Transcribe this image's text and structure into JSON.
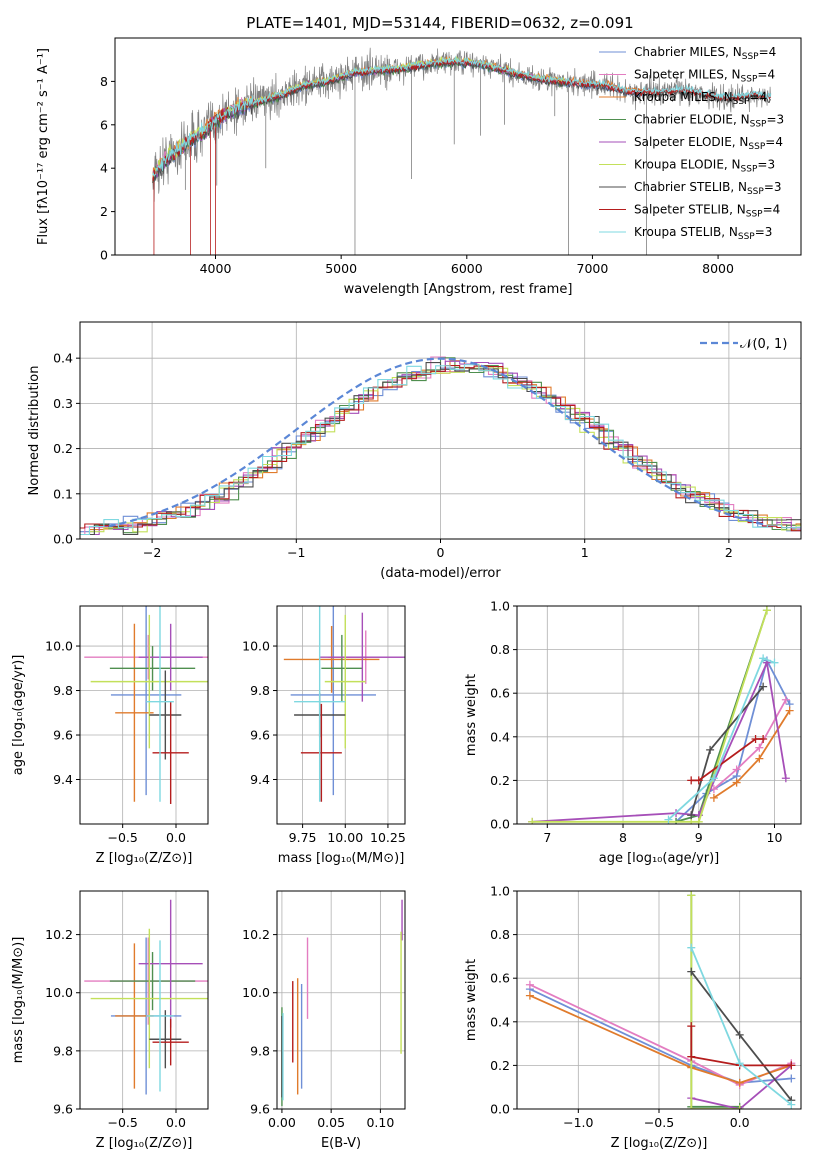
{
  "title": "PLATE=1401, MJD=53144, FIBERID=0632, z=0.091",
  "colors": {
    "chabrier_miles": "#6f8fd6",
    "salpeter_miles": "#e37dc1",
    "kroupa_miles": "#e07b2c",
    "chabrier_elodie": "#4f8f4f",
    "salpeter_elodie": "#a64fb8",
    "kroupa_elodie": "#c3e05a",
    "chabrier_stelib": "#4d4d4d",
    "salpeter_stelib": "#b51d1d",
    "kroupa_stelib": "#7fd8e0",
    "data": "#808080",
    "normal": "#5b87d6",
    "grid": "#b0b0b0"
  },
  "chart_data": [
    {
      "id": "spectrum",
      "type": "line",
      "title": "PLATE=1401, MJD=53144, FIBERID=0632, z=0.091",
      "xlabel": "wavelength [Angstrom, rest frame]",
      "ylabel": "Flux [fλ10⁻¹⁷ erg cm⁻² s⁻¹ A⁻¹]",
      "xlim": [
        3200,
        8660
      ],
      "ylim": [
        0,
        10
      ],
      "xticks": [
        4000,
        5000,
        6000,
        7000,
        8000
      ],
      "yticks": [
        0,
        2,
        4,
        6,
        8
      ],
      "grid": false,
      "legend_position": "right",
      "legend": [
        {
          "label": "Chabrier MILES, N",
          "sub": "SSP",
          "suffix": "=4",
          "color_key": "chabrier_miles"
        },
        {
          "label": "Salpeter MILES, N",
          "sub": "SSP",
          "suffix": "=4",
          "color_key": "salpeter_miles"
        },
        {
          "label": "Kroupa MILES, N",
          "sub": "SSP",
          "suffix": "=4",
          "color_key": "kroupa_miles"
        },
        {
          "label": "Chabrier ELODIE, N",
          "sub": "SSP",
          "suffix": "=3",
          "color_key": "chabrier_elodie"
        },
        {
          "label": "Salpeter ELODIE, N",
          "sub": "SSP",
          "suffix": "=4",
          "color_key": "salpeter_elodie"
        },
        {
          "label": "Kroupa ELODIE, N",
          "sub": "SSP",
          "suffix": "=3",
          "color_key": "kroupa_elodie"
        },
        {
          "label": "Chabrier STELIB, N",
          "sub": "SSP",
          "suffix": "=3",
          "color_key": "chabrier_stelib"
        },
        {
          "label": "Salpeter STELIB, N",
          "sub": "SSP",
          "suffix": "=4",
          "color_key": "salpeter_stelib"
        },
        {
          "label": "Kroupa STELIB, N",
          "sub": "SSP",
          "suffix": "=3",
          "color_key": "kroupa_stelib"
        }
      ],
      "continuum": [
        [
          3500,
          3.6
        ],
        [
          3600,
          4.4
        ],
        [
          3700,
          4.8
        ],
        [
          3800,
          5.3
        ],
        [
          3900,
          5.6
        ],
        [
          4000,
          6.2
        ],
        [
          4100,
          6.6
        ],
        [
          4300,
          7.0
        ],
        [
          4500,
          7.3
        ],
        [
          4700,
          7.8
        ],
        [
          4900,
          8.0
        ],
        [
          5100,
          8.4
        ],
        [
          5300,
          8.5
        ],
        [
          5500,
          8.6
        ],
        [
          5700,
          8.8
        ],
        [
          5900,
          8.9
        ],
        [
          6100,
          8.8
        ],
        [
          6300,
          8.5
        ],
        [
          6500,
          8.2
        ],
        [
          6700,
          8.0
        ],
        [
          6900,
          7.9
        ],
        [
          7100,
          7.8
        ],
        [
          7300,
          7.5
        ],
        [
          7500,
          7.5
        ],
        [
          7700,
          7.6
        ],
        [
          7900,
          7.4
        ],
        [
          8100,
          7.2
        ],
        [
          8300,
          7.4
        ],
        [
          8420,
          7.2
        ]
      ]
    },
    {
      "id": "residuals",
      "type": "line",
      "xlabel": "(data-model)/error",
      "ylabel": "Normed distribution",
      "xlim": [
        -2.5,
        2.5
      ],
      "ylim": [
        0,
        0.48
      ],
      "xticks": [
        -2,
        -1,
        0,
        1,
        2
      ],
      "xtick_labels": [
        "−2",
        "−1",
        "0",
        "1",
        "2"
      ],
      "yticks": [
        0,
        0.1,
        0.2,
        0.3,
        0.4
      ],
      "ytick_labels": [
        "0.0",
        "0.1",
        "0.2",
        "0.3",
        "0.4"
      ],
      "grid": true,
      "legend_position": "upper right",
      "legend_label": "𝒩(0, 1)",
      "bin_width": 0.1
    },
    {
      "id": "age-vs-metallicity",
      "type": "scatter",
      "xlabel": "Z [log₁₀(Z/Z⊙)]",
      "ylabel": "age  [log₁₀(age/yr)]",
      "xlim": [
        -0.9,
        0.3
      ],
      "ylim": [
        9.2,
        10.18
      ],
      "xticks": [
        -0.5,
        0.0
      ],
      "xtick_labels": [
        "−0.5",
        "0.0"
      ],
      "yticks": [
        9.4,
        9.6,
        9.8,
        10.0
      ],
      "ytick_labels": [
        "9.4",
        "9.6",
        "9.8",
        "10.0"
      ],
      "grid": true,
      "points": [
        {
          "x": -0.28,
          "y": 9.78,
          "xerr": 0.33,
          "yerr": 0.45,
          "color_key": "chabrier_miles"
        },
        {
          "x": -0.26,
          "y": 9.95,
          "xerr": 0.6,
          "yerr": 0.1,
          "color_key": "salpeter_miles"
        },
        {
          "x": -0.39,
          "y": 9.7,
          "xerr": 0.18,
          "yerr": 0.4,
          "color_key": "kroupa_miles"
        },
        {
          "x": -0.22,
          "y": 9.9,
          "xerr": 0.4,
          "yerr": 0.1,
          "color_key": "chabrier_elodie"
        },
        {
          "x": -0.05,
          "y": 9.95,
          "xerr": 0.3,
          "yerr": 0.15,
          "color_key": "salpeter_elodie"
        },
        {
          "x": -0.25,
          "y": 9.84,
          "xerr": 0.55,
          "yerr": 0.3,
          "color_key": "kroupa_elodie"
        },
        {
          "x": -0.1,
          "y": 9.69,
          "xerr": 0.15,
          "yerr": 0.2,
          "color_key": "chabrier_stelib"
        },
        {
          "x": -0.05,
          "y": 9.52,
          "xerr": 0.17,
          "yerr": 0.23,
          "color_key": "salpeter_stelib"
        },
        {
          "x": -0.15,
          "y": 9.75,
          "xerr": 0.13,
          "yerr": 0.45,
          "color_key": "kroupa_stelib"
        }
      ]
    },
    {
      "id": "age-vs-mass",
      "type": "scatter",
      "xlabel": "mass [log₁₀(M/M⊙)]",
      "ylabel": "",
      "xlim": [
        9.6,
        10.35
      ],
      "ylim": [
        9.2,
        10.18
      ],
      "xticks": [
        9.75,
        10.0,
        10.25
      ],
      "xtick_labels": [
        "9.75",
        "10.00",
        "10.25"
      ],
      "yticks": [
        9.4,
        9.6,
        9.8,
        10.0
      ],
      "ytick_labels": [
        "9.4",
        "9.6",
        "9.8",
        "10.0"
      ],
      "grid": true,
      "points": [
        {
          "x": 9.93,
          "y": 9.78,
          "xerr": 0.25,
          "yerr": 0.45,
          "color_key": "chabrier_miles"
        },
        {
          "x": 10.12,
          "y": 9.95,
          "xerr": 0.22,
          "yerr": 0.12,
          "color_key": "salpeter_miles"
        },
        {
          "x": 9.92,
          "y": 9.94,
          "xerr": 0.28,
          "yerr": 0.15,
          "color_key": "kroupa_miles"
        },
        {
          "x": 9.98,
          "y": 9.9,
          "xerr": 0.12,
          "yerr": 0.15,
          "color_key": "chabrier_elodie"
        },
        {
          "x": 10.1,
          "y": 9.95,
          "xerr": 0.25,
          "yerr": 0.2,
          "color_key": "salpeter_elodie"
        },
        {
          "x": 10.0,
          "y": 9.84,
          "xerr": 0.12,
          "yerr": 0.3,
          "color_key": "kroupa_elodie"
        },
        {
          "x": 9.85,
          "y": 9.69,
          "xerr": 0.15,
          "yerr": 0.1,
          "color_key": "chabrier_stelib"
        },
        {
          "x": 9.86,
          "y": 9.52,
          "xerr": 0.12,
          "yerr": 0.22,
          "color_key": "salpeter_stelib"
        },
        {
          "x": 9.85,
          "y": 9.75,
          "xerr": 0.15,
          "yerr": 0.45,
          "color_key": "kroupa_stelib"
        }
      ]
    },
    {
      "id": "weight-vs-age",
      "type": "line",
      "xlabel": "age  [log₁₀(age/yr)]",
      "ylabel": "mass weight",
      "xlim": [
        6.6,
        10.35
      ],
      "ylim": [
        0,
        1.0
      ],
      "xticks": [
        7,
        8,
        9,
        10
      ],
      "xtick_labels": [
        "7",
        "8",
        "9",
        "10"
      ],
      "yticks": [
        0,
        0.2,
        0.4,
        0.6,
        0.8,
        1.0
      ],
      "ytick_labels": [
        "0.0",
        "0.2",
        "0.4",
        "0.6",
        "0.8",
        "1.0"
      ],
      "grid": true,
      "series": [
        {
          "color_key": "chabrier_miles",
          "x": [
            8.7,
            9.1,
            9.5,
            9.9,
            10.2
          ],
          "y": [
            0.01,
            0.14,
            0.22,
            0.75,
            0.55
          ]
        },
        {
          "color_key": "salpeter_miles",
          "x": [
            9.2,
            9.5,
            9.8,
            10.15
          ],
          "y": [
            0.16,
            0.25,
            0.35,
            0.57
          ]
        },
        {
          "color_key": "kroupa_miles",
          "x": [
            9.2,
            9.5,
            9.8,
            10.2
          ],
          "y": [
            0.12,
            0.19,
            0.3,
            0.52
          ]
        },
        {
          "color_key": "chabrier_elodie",
          "x": [
            8.7,
            9.0,
            9.9
          ],
          "y": [
            0.01,
            0.04,
            0.98
          ]
        },
        {
          "color_key": "salpeter_elodie",
          "x": [
            6.8,
            8.7,
            9.0,
            9.9,
            10.15
          ],
          "y": [
            0.01,
            0.05,
            0.04,
            0.74,
            0.21
          ]
        },
        {
          "color_key": "kroupa_elodie",
          "x": [
            6.8,
            8.9,
            9.0,
            9.9
          ],
          "y": [
            0.01,
            0.01,
            0.01,
            0.98
          ]
        },
        {
          "color_key": "chabrier_stelib",
          "x": [
            8.9,
            9.15,
            9.85
          ],
          "y": [
            0.04,
            0.34,
            0.63
          ]
        },
        {
          "color_key": "salpeter_stelib",
          "x": [
            8.9,
            9.0,
            9.75,
            9.85
          ],
          "y": [
            0.2,
            0.2,
            0.39,
            0.39
          ]
        },
        {
          "color_key": "kroupa_stelib",
          "x": [
            8.6,
            9.2,
            9.85,
            10.0
          ],
          "y": [
            0.02,
            0.21,
            0.76,
            0.74
          ]
        }
      ]
    },
    {
      "id": "mass-vs-metallicity",
      "type": "scatter",
      "xlabel": "Z [log₁₀(Z/Z⊙)]",
      "ylabel": "mass [log₁₀(M/M⊙)]",
      "xlim": [
        -0.9,
        0.3
      ],
      "ylim": [
        9.6,
        10.35
      ],
      "xticks": [
        -0.5,
        0.0
      ],
      "xtick_labels": [
        "−0.5",
        "0.0"
      ],
      "yticks": [
        9.6,
        9.8,
        10.0,
        10.2
      ],
      "ytick_labels": [
        "9.6",
        "9.8",
        "10.0",
        "10.2"
      ],
      "grid": true,
      "points": [
        {
          "x": -0.28,
          "y": 9.92,
          "xerr": 0.33,
          "yerr": 0.27,
          "color_key": "chabrier_miles"
        },
        {
          "x": -0.26,
          "y": 10.04,
          "xerr": 0.6,
          "yerr": 0.15,
          "color_key": "salpeter_miles"
        },
        {
          "x": -0.39,
          "y": 9.92,
          "xerr": 0.18,
          "yerr": 0.25,
          "color_key": "kroupa_miles"
        },
        {
          "x": -0.22,
          "y": 10.04,
          "xerr": 0.4,
          "yerr": 0.1,
          "color_key": "chabrier_elodie"
        },
        {
          "x": -0.05,
          "y": 10.1,
          "xerr": 0.3,
          "yerr": 0.22,
          "color_key": "salpeter_elodie"
        },
        {
          "x": -0.25,
          "y": 9.98,
          "xerr": 0.55,
          "yerr": 0.24,
          "color_key": "kroupa_elodie"
        },
        {
          "x": -0.1,
          "y": 9.84,
          "xerr": 0.15,
          "yerr": 0.1,
          "color_key": "chabrier_stelib"
        },
        {
          "x": -0.05,
          "y": 9.83,
          "xerr": 0.17,
          "yerr": 0.08,
          "color_key": "salpeter_stelib"
        },
        {
          "x": -0.15,
          "y": 9.92,
          "xerr": 0.13,
          "yerr": 0.26,
          "color_key": "kroupa_stelib"
        }
      ]
    },
    {
      "id": "mass-vs-extinction",
      "type": "scatter",
      "xlabel": "E(B-V)",
      "ylabel": "",
      "xlim": [
        -0.005,
        0.125
      ],
      "ylim": [
        9.6,
        10.35
      ],
      "xticks": [
        0.0,
        0.05,
        0.1
      ],
      "xtick_labels": [
        "0.00",
        "0.05",
        "0.10"
      ],
      "yticks": [
        9.6,
        9.8,
        10.0,
        10.2
      ],
      "ytick_labels": [
        "9.6",
        "9.8",
        "10.0",
        "10.2"
      ],
      "grid": true,
      "points": [
        {
          "x": 0.02,
          "y": 9.85,
          "xerr": 0,
          "yerr": 0.18,
          "color_key": "chabrier_miles"
        },
        {
          "x": 0.026,
          "y": 10.05,
          "xerr": 0,
          "yerr": 0.14,
          "color_key": "salpeter_miles"
        },
        {
          "x": 0.016,
          "y": 9.85,
          "xerr": 0,
          "yerr": 0.2,
          "color_key": "kroupa_miles"
        },
        {
          "x": 0.0,
          "y": 9.78,
          "xerr": 0,
          "yerr": 0.17,
          "color_key": "chabrier_elodie"
        },
        {
          "x": 0.122,
          "y": 10.25,
          "xerr": 0,
          "yerr": 0.07,
          "color_key": "salpeter_elodie"
        },
        {
          "x": 0.121,
          "y": 10.0,
          "xerr": 0,
          "yerr": 0.21,
          "color_key": "kroupa_elodie"
        },
        {
          "x": 0.0,
          "y": 9.78,
          "xerr": 0,
          "yerr": 0.14,
          "color_key": "chabrier_stelib"
        },
        {
          "x": 0.011,
          "y": 9.9,
          "xerr": 0,
          "yerr": 0.14,
          "color_key": "salpeter_stelib"
        },
        {
          "x": 0.001,
          "y": 9.78,
          "xerr": 0,
          "yerr": 0.15,
          "color_key": "kroupa_stelib"
        }
      ]
    },
    {
      "id": "weight-vs-metallicity",
      "type": "line",
      "xlabel": "Z [log₁₀(Z/Z⊙)]",
      "ylabel": "mass weight",
      "xlim": [
        -1.38,
        0.38
      ],
      "ylim": [
        0,
        1.0
      ],
      "xticks": [
        -1.0,
        -0.5,
        0.0
      ],
      "xtick_labels": [
        "−1.0",
        "−0.5",
        "0.0"
      ],
      "yticks": [
        0,
        0.2,
        0.4,
        0.6,
        0.8,
        1.0
      ],
      "ytick_labels": [
        "0.0",
        "0.2",
        "0.4",
        "0.6",
        "0.8",
        "1.0"
      ],
      "grid": true,
      "series": [
        {
          "color_key": "chabrier_miles",
          "x": [
            -1.3,
            -0.3,
            0.0,
            0.32
          ],
          "y": [
            0.55,
            0.2,
            0.12,
            0.14
          ]
        },
        {
          "color_key": "salpeter_miles",
          "x": [
            -1.3,
            -0.3,
            0.0,
            0.32
          ],
          "y": [
            0.57,
            0.22,
            0.11,
            0.21
          ]
        },
        {
          "color_key": "kroupa_miles",
          "x": [
            -1.3,
            -0.3,
            0.0,
            0.32
          ],
          "y": [
            0.52,
            0.19,
            0.12,
            0.2
          ]
        },
        {
          "color_key": "chabrier_elodie",
          "x": [
            -0.3,
            -0.3,
            0.0
          ],
          "y": [
            0.98,
            0.01,
            0.01
          ]
        },
        {
          "color_key": "salpeter_elodie",
          "x": [
            -0.3,
            0.0,
            0.32
          ],
          "y": [
            0.05,
            0.0,
            0.2
          ]
        },
        {
          "color_key": "kroupa_elodie",
          "x": [
            -0.3,
            -0.3,
            0.0
          ],
          "y": [
            0.98,
            0.0,
            0.0
          ]
        },
        {
          "color_key": "chabrier_stelib",
          "x": [
            -0.3,
            0.0,
            0.32
          ],
          "y": [
            0.63,
            0.34,
            0.04
          ]
        },
        {
          "color_key": "salpeter_stelib",
          "x": [
            -0.3,
            -0.3,
            0.0,
            0.32
          ],
          "y": [
            0.38,
            0.24,
            0.2,
            0.2
          ]
        },
        {
          "color_key": "kroupa_stelib",
          "x": [
            -0.3,
            0.0,
            0.32
          ],
          "y": [
            0.74,
            0.21,
            0.02
          ]
        }
      ]
    }
  ]
}
